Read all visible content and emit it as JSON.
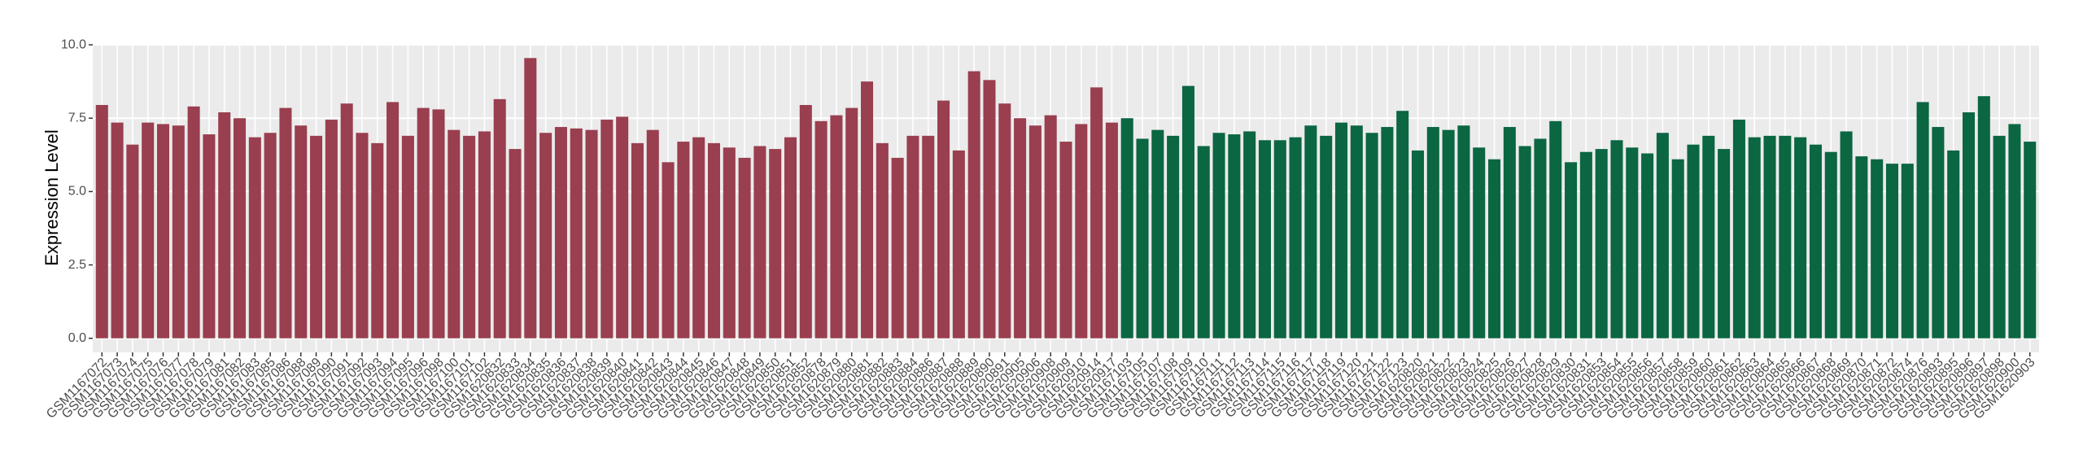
{
  "chart_data": {
    "type": "bar",
    "y_label": "Expression Level",
    "categories": [
      "GSM1167072",
      "GSM1167073",
      "GSM1167074",
      "GSM1167075",
      "GSM1167076",
      "GSM1167077",
      "GSM1167078",
      "GSM1167079",
      "GSM1167081",
      "GSM1167082",
      "GSM1167083",
      "GSM1167085",
      "GSM1167086",
      "GSM1167088",
      "GSM1167089",
      "GSM1167090",
      "GSM1167091",
      "GSM1167092",
      "GSM1167093",
      "GSM1167094",
      "GSM1167095",
      "GSM1167096",
      "GSM1167098",
      "GSM1167100",
      "GSM1167101",
      "GSM1167102",
      "GSM1620832",
      "GSM1620833",
      "GSM1620834",
      "GSM1620835",
      "GSM1620836",
      "GSM1620837",
      "GSM1620838",
      "GSM1620839",
      "GSM1620840",
      "GSM1620841",
      "GSM1620842",
      "GSM1620843",
      "GSM1620844",
      "GSM1620845",
      "GSM1620846",
      "GSM1620847",
      "GSM1620848",
      "GSM1620849",
      "GSM1620850",
      "GSM1620851",
      "GSM1620852",
      "GSM1620878",
      "GSM1620879",
      "GSM1620880",
      "GSM1620881",
      "GSM1620882",
      "GSM1620883",
      "GSM1620884",
      "GSM1620886",
      "GSM1620887",
      "GSM1620888",
      "GSM1620889",
      "GSM1620890",
      "GSM1620891",
      "GSM1620905",
      "GSM1620906",
      "GSM1620908",
      "GSM1620909",
      "GSM1620910",
      "GSM1620914",
      "GSM1620917",
      "GSM1167103",
      "GSM1167105",
      "GSM1167107",
      "GSM1167108",
      "GSM1167109",
      "GSM1167110",
      "GSM1167111",
      "GSM1167112",
      "GSM1167113",
      "GSM1167114",
      "GSM1167115",
      "GSM1167116",
      "GSM1167117",
      "GSM1167118",
      "GSM1167119",
      "GSM1167120",
      "GSM1167121",
      "GSM1167122",
      "GSM1167123",
      "GSM1620820",
      "GSM1620821",
      "GSM1620822",
      "GSM1620823",
      "GSM1620824",
      "GSM1620825",
      "GSM1620826",
      "GSM1620827",
      "GSM1620828",
      "GSM1620829",
      "GSM1620830",
      "GSM1620831",
      "GSM1620853",
      "GSM1620854",
      "GSM1620855",
      "GSM1620856",
      "GSM1620857",
      "GSM1620858",
      "GSM1620859",
      "GSM1620860",
      "GSM1620861",
      "GSM1620862",
      "GSM1620863",
      "GSM1620864",
      "GSM1620865",
      "GSM1620866",
      "GSM1620867",
      "GSM1620868",
      "GSM1620869",
      "GSM1620870",
      "GSM1620871",
      "GSM1620872",
      "GSM1620874",
      "GSM1620876",
      "GSM1620893",
      "GSM1620895",
      "GSM1620896",
      "GSM1620897",
      "GSM1620898",
      "GSM1620900",
      "GSM1620903"
    ],
    "values": [
      7.95,
      7.35,
      6.6,
      7.35,
      7.3,
      7.25,
      7.9,
      6.95,
      7.7,
      7.5,
      6.85,
      7.0,
      7.85,
      7.25,
      6.9,
      7.45,
      8.0,
      7.0,
      6.65,
      8.05,
      6.9,
      7.85,
      7.8,
      7.1,
      6.9,
      7.05,
      8.15,
      6.45,
      9.55,
      7.0,
      7.2,
      7.15,
      7.1,
      7.45,
      7.55,
      6.65,
      7.1,
      6.0,
      6.7,
      6.85,
      6.65,
      6.5,
      6.15,
      6.55,
      6.45,
      6.85,
      7.95,
      7.4,
      7.6,
      7.85,
      8.75,
      6.65,
      6.15,
      6.9,
      6.9,
      8.1,
      6.4,
      9.1,
      8.8,
      8.0,
      7.5,
      7.25,
      7.6,
      6.7,
      7.3,
      8.55,
      7.35,
      7.5,
      6.8,
      7.1,
      6.9,
      8.6,
      6.55,
      7.0,
      6.95,
      7.05,
      6.75,
      6.75,
      6.85,
      7.25,
      6.9,
      7.35,
      7.25,
      7.0,
      7.2,
      7.75,
      6.4,
      7.2,
      7.1,
      7.25,
      6.5,
      6.1,
      7.2,
      6.55,
      6.8,
      7.4,
      6.0,
      6.35,
      6.45,
      6.75,
      6.5,
      6.3,
      7.0,
      6.1,
      6.6,
      6.9,
      6.45,
      7.45,
      6.85,
      6.9,
      6.9,
      6.85,
      6.6,
      6.35,
      7.05,
      6.2,
      6.1,
      5.95,
      5.95,
      8.05,
      7.2,
      6.4,
      7.7,
      8.25,
      6.9,
      7.3,
      6.7
    ],
    "colors": [
      "#993f4f",
      "#993f4f",
      "#993f4f",
      "#993f4f",
      "#993f4f",
      "#993f4f",
      "#993f4f",
      "#993f4f",
      "#993f4f",
      "#993f4f",
      "#993f4f",
      "#993f4f",
      "#993f4f",
      "#993f4f",
      "#993f4f",
      "#993f4f",
      "#993f4f",
      "#993f4f",
      "#993f4f",
      "#993f4f",
      "#993f4f",
      "#993f4f",
      "#993f4f",
      "#993f4f",
      "#993f4f",
      "#993f4f",
      "#993f4f",
      "#993f4f",
      "#993f4f",
      "#993f4f",
      "#993f4f",
      "#993f4f",
      "#993f4f",
      "#993f4f",
      "#993f4f",
      "#993f4f",
      "#993f4f",
      "#993f4f",
      "#993f4f",
      "#993f4f",
      "#993f4f",
      "#993f4f",
      "#993f4f",
      "#993f4f",
      "#993f4f",
      "#993f4f",
      "#993f4f",
      "#993f4f",
      "#993f4f",
      "#993f4f",
      "#993f4f",
      "#993f4f",
      "#993f4f",
      "#993f4f",
      "#993f4f",
      "#993f4f",
      "#993f4f",
      "#993f4f",
      "#993f4f",
      "#993f4f",
      "#993f4f",
      "#993f4f",
      "#993f4f",
      "#993f4f",
      "#993f4f",
      "#993f4f",
      "#993f4f",
      "#0b6642",
      "#0b6642",
      "#0b6642",
      "#0b6642",
      "#0b6642",
      "#0b6642",
      "#0b6642",
      "#0b6642",
      "#0b6642",
      "#0b6642",
      "#0b6642",
      "#0b6642",
      "#0b6642",
      "#0b6642",
      "#0b6642",
      "#0b6642",
      "#0b6642",
      "#0b6642",
      "#0b6642",
      "#0b6642",
      "#0b6642",
      "#0b6642",
      "#0b6642",
      "#0b6642",
      "#0b6642",
      "#0b6642",
      "#0b6642",
      "#0b6642",
      "#0b6642",
      "#0b6642",
      "#0b6642",
      "#0b6642",
      "#0b6642",
      "#0b6642",
      "#0b6642",
      "#0b6642",
      "#0b6642",
      "#0b6642",
      "#0b6642",
      "#0b6642",
      "#0b6642",
      "#0b6642",
      "#0b6642",
      "#0b6642",
      "#0b6642",
      "#0b6642",
      "#0b6642",
      "#0b6642",
      "#0b6642",
      "#0b6642",
      "#0b6642",
      "#0b6642",
      "#0b6642",
      "#0b6642",
      "#0b6642",
      "#0b6642",
      "#0b6642",
      "#0b6642",
      "#0b6642",
      "#0b6642"
    ],
    "ylim": [
      -0.48,
      10.03
    ],
    "yticks": [
      {
        "value": 0,
        "label": "0.0"
      },
      2.5,
      {
        "value": 5,
        "label": "5.0"
      },
      7.5,
      {
        "value": 10,
        "label": "10.0"
      }
    ],
    "grid": true
  }
}
